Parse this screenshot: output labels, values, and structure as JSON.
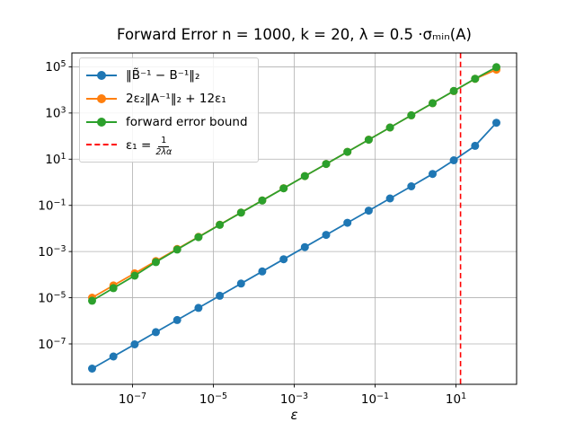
{
  "title": "Forward Error n = 1000, k = 20, λ = 0.5 ·σₘᵢₙ(A)",
  "axes": {
    "xlabel": "ε",
    "ylabel": "",
    "xscale": "log",
    "yscale": "log",
    "xtick_exponents": [
      -7,
      -5,
      -3,
      -1,
      1
    ],
    "ytick_exponents": [
      5,
      3,
      1,
      -1,
      -3,
      -5,
      -7
    ],
    "xlim_log": [
      -8.5,
      2.5
    ],
    "ylim_log": [
      -8.75,
      5.6
    ],
    "grid": true,
    "grid_color": "#b0b0b0"
  },
  "legend": {
    "position": "upper-left",
    "items": [
      {
        "label": "‖B̃⁻¹ − B⁻¹‖₂",
        "color": "#1f77b4",
        "style": "line-marker"
      },
      {
        "label": "2ε₂‖A⁻¹‖₂ + 12ε₁",
        "color": "#ff7f0e",
        "style": "line-marker"
      },
      {
        "label": "forward error bound",
        "color": "#2ca02c",
        "style": "line-marker"
      },
      {
        "label_pre": "ε₁ = ",
        "frac_num": "1",
        "frac_den": "2λα",
        "color": "#ff0000",
        "style": "dashed-line"
      }
    ]
  },
  "chart_data": {
    "type": "line",
    "xscale": "log",
    "yscale": "log",
    "title": "Forward Error n = 1000, k = 20, λ = 0.5 ·σmin(A)",
    "xlabel": "ε",
    "x": [
      1e-08,
      3.36e-08,
      1.13e-07,
      3.79e-07,
      1.27e-06,
      4.28e-06,
      1.44e-05,
      4.83e-05,
      0.000162,
      0.000546,
      0.00183,
      0.00616,
      0.0207,
      0.0695,
      0.234,
      0.785,
      2.64,
      8.86,
      29.8,
      100
    ],
    "series": [
      {
        "name": "‖B̃⁻¹ − B⁻¹‖₂",
        "color": "#1f77b4",
        "marker": "o",
        "values": [
          8.5e-09,
          2.85e-08,
          9.6e-08,
          3.22e-07,
          1.08e-06,
          3.64e-06,
          1.22e-05,
          4.11e-05,
          0.000138,
          0.000464,
          0.00156,
          0.00524,
          0.0176,
          0.0591,
          0.199,
          0.667,
          2.3,
          9.0,
          38,
          380
        ]
      },
      {
        "name": "2ε₂‖A⁻¹‖₂ + 12ε₁",
        "color": "#ff7f0e",
        "marker": "o",
        "values": [
          1.01e-05,
          3.4e-05,
          0.000114,
          0.000384,
          0.00129,
          0.00433,
          0.0146,
          0.0489,
          0.164,
          0.552,
          1.85,
          6.23,
          20.9,
          70.3,
          236,
          794,
          2670,
          8970,
          30100,
          75000
        ]
      },
      {
        "name": "forward error bound",
        "color": "#2ca02c",
        "marker": "o",
        "values": [
          7.4e-06,
          2.6e-05,
          9e-05,
          0.00035,
          0.00122,
          0.0042,
          0.0143,
          0.0485,
          0.163,
          0.55,
          1.85,
          6.2,
          20.9,
          70,
          236,
          794,
          2670,
          9000,
          30500,
          97000
        ]
      }
    ],
    "vline": {
      "x": 13,
      "color": "#ff0000",
      "style": "dashed",
      "label": "ε₁ = 1/(2λα)"
    },
    "legend_position": "upper-left"
  }
}
